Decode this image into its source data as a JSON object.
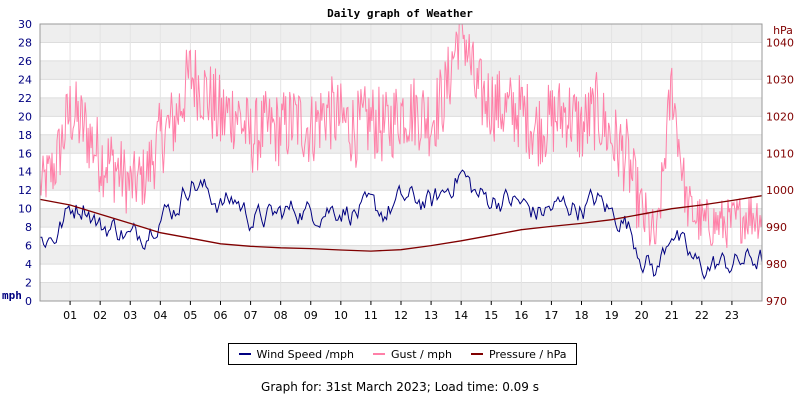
{
  "chart_data": {
    "type": "line",
    "title": "Daily graph of Weather",
    "left_axis": {
      "unit_label": "mph",
      "range": [
        0,
        30
      ],
      "ticks": [
        0,
        2,
        4,
        6,
        8,
        10,
        12,
        14,
        16,
        18,
        20,
        22,
        24,
        26,
        28,
        30
      ],
      "color": "#000080"
    },
    "right_axis": {
      "unit_label": "hPa",
      "range": [
        970,
        1045
      ],
      "ticks": [
        970,
        980,
        990,
        1000,
        1010,
        1020,
        1030,
        1040
      ],
      "color": "#800000"
    },
    "x_ticks": [
      "01",
      "02",
      "03",
      "04",
      "05",
      "06",
      "07",
      "08",
      "09",
      "10",
      "11",
      "12",
      "13",
      "14",
      "15",
      "16",
      "17",
      "18",
      "19",
      "20",
      "21",
      "22",
      "23"
    ],
    "x_range_hours": [
      0,
      24
    ],
    "grid": true,
    "legend_position": "bottom",
    "series": [
      {
        "name": "Wind Speed /mph",
        "axis": "left",
        "color": "#000080",
        "hours": [
          0,
          0.5,
          1,
          1.5,
          2,
          2.5,
          3,
          3.5,
          4,
          4.5,
          5,
          5.5,
          6,
          6.5,
          7,
          7.5,
          8,
          8.5,
          9,
          9.5,
          10,
          10.5,
          11,
          11.5,
          12,
          12.5,
          13,
          13.5,
          14,
          14.5,
          15,
          15.5,
          16,
          16.5,
          17,
          17.5,
          18,
          18.5,
          19,
          19.5,
          20,
          20.5,
          21,
          21.5,
          22,
          22.5,
          23,
          23.5,
          24
        ],
        "values": [
          6.5,
          7,
          10,
          10.5,
          8,
          8,
          6.8,
          7.5,
          9.5,
          10,
          13,
          12,
          10.5,
          11,
          9,
          9,
          9.5,
          10,
          9.5,
          10,
          10,
          9.5,
          10,
          9.5,
          11,
          11,
          10.5,
          12,
          14,
          11.5,
          11,
          11,
          10.5,
          9.5,
          10,
          10.5,
          10,
          11,
          9.5,
          8.5,
          5,
          3,
          8,
          5,
          3.5,
          4,
          4,
          4.5,
          4.5
        ]
      },
      {
        "name": "Gust / mph",
        "axis": "left",
        "color": "#ff80a8",
        "hours": [
          0,
          0.5,
          1,
          1.5,
          2,
          2.5,
          3,
          3.5,
          4,
          4.5,
          5,
          5.5,
          6,
          6.5,
          7,
          7.5,
          8,
          8.5,
          9,
          9.5,
          10,
          10.5,
          11,
          11.5,
          12,
          12.5,
          13,
          13.5,
          14,
          14.5,
          15,
          15.5,
          16,
          16.5,
          17,
          17.5,
          18,
          18.5,
          19,
          19.5,
          20,
          20.5,
          21,
          21.5,
          22,
          22.5,
          23,
          23.5,
          24
        ],
        "values": [
          12,
          14,
          20,
          18,
          15,
          14,
          12,
          13,
          17,
          19,
          24,
          22,
          19,
          20,
          17,
          18,
          18,
          19,
          18,
          20,
          19,
          18,
          19,
          18,
          20,
          20,
          19,
          22,
          30,
          22,
          21,
          20,
          20,
          18,
          19,
          20,
          18,
          20,
          17,
          15,
          9,
          6,
          23,
          10,
          8,
          8,
          8,
          9,
          9
        ],
        "spread": [
          4,
          5,
          6,
          6,
          6,
          6,
          5,
          5,
          6,
          6,
          6,
          6,
          7,
          6,
          6,
          6,
          6,
          6,
          6,
          6,
          6,
          6,
          6,
          6,
          6,
          6,
          6,
          6,
          6,
          6,
          6,
          6,
          6,
          6,
          6,
          6,
          6,
          6,
          6,
          6,
          5,
          4,
          5,
          4,
          4,
          4,
          4,
          4,
          4
        ]
      },
      {
        "name": "Pressure / hPa",
        "axis": "right",
        "color": "#800000",
        "hours": [
          0,
          1,
          2,
          3,
          4,
          5,
          6,
          7,
          8,
          9,
          10,
          11,
          12,
          13,
          14,
          15,
          16,
          17,
          18,
          19,
          20,
          21,
          22,
          23,
          24
        ],
        "values": [
          997.5,
          996,
          993.5,
          991,
          988.5,
          987,
          985.5,
          984.8,
          984.4,
          984.2,
          983.8,
          983.5,
          983.9,
          985,
          986.3,
          987.8,
          989.3,
          990.2,
          991,
          992,
          993.5,
          995,
          996,
          997.2,
          998.5
        ]
      }
    ],
    "footer": "Graph for: 31st March 2023; Load time: 0.09 s"
  }
}
